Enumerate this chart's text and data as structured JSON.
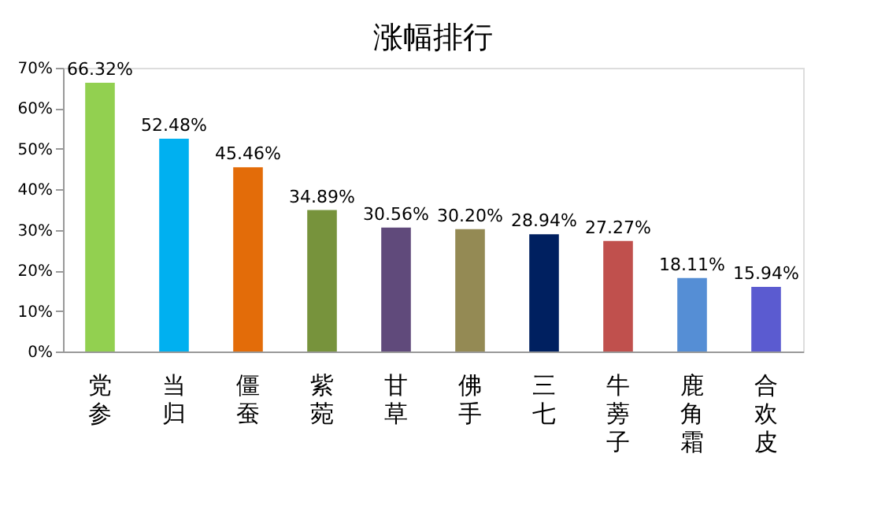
{
  "chart_data": {
    "type": "bar",
    "title": "涨幅排行",
    "categories": [
      "党参",
      "当归",
      "僵蚕",
      "紫菀",
      "甘草",
      "佛手",
      "三七",
      "牛蒡子",
      "鹿角霜",
      "合欢皮"
    ],
    "values": [
      66.32,
      52.48,
      45.46,
      34.89,
      30.56,
      30.2,
      28.94,
      27.27,
      18.11,
      15.94
    ],
    "colors": [
      "#92d050",
      "#00b0f0",
      "#e36c09",
      "#77933c",
      "#604a7b",
      "#948a54",
      "#002060",
      "#c0504d",
      "#558ed5",
      "#5b5bd0"
    ],
    "value_labels": [
      "66.32%",
      "52.48%",
      "45.46%",
      "34.89%",
      "30.56%",
      "30.20%",
      "28.94%",
      "27.27%",
      "18.11%",
      "15.94%"
    ],
    "ylim": [
      0,
      70
    ],
    "yticks": [
      {
        "value": 0,
        "label": "0%"
      },
      {
        "value": 10,
        "label": "10%"
      },
      {
        "value": 20,
        "label": "20%"
      },
      {
        "value": 30,
        "label": "30%"
      },
      {
        "value": 40,
        "label": "40%"
      },
      {
        "value": 50,
        "label": "50%"
      },
      {
        "value": 60,
        "label": "60%"
      },
      {
        "value": 70,
        "label": "70%"
      }
    ],
    "grid": false
  }
}
